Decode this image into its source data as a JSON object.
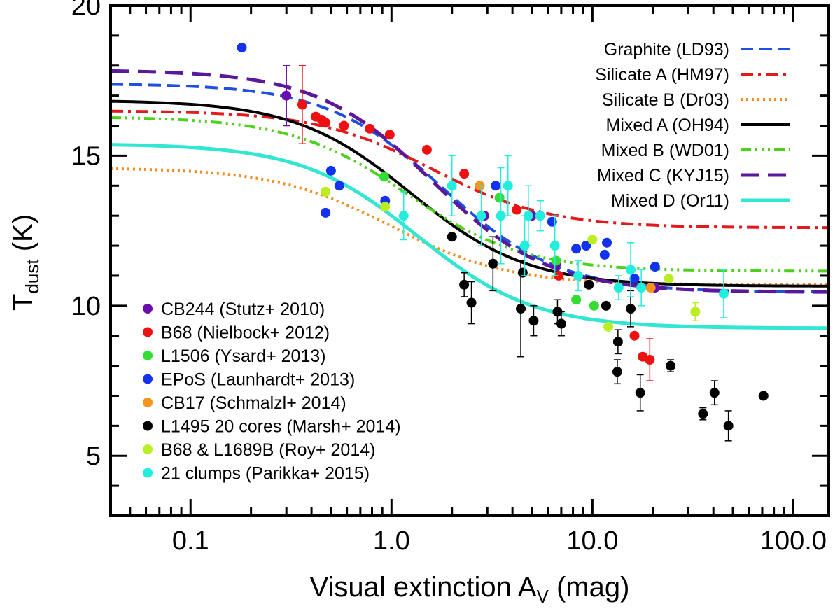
{
  "chart_data": {
    "type": "scatter",
    "xscale": "log",
    "xlim": [
      0.04,
      150
    ],
    "ylim": [
      3,
      20
    ],
    "xlabel": {
      "main": "Visual extinction A",
      "sub": "V",
      "unit": " (mag)"
    },
    "ylabel": {
      "main": "T",
      "sub": "dust",
      "unit": " (K)"
    },
    "xticks": [
      {
        "value": 0.1,
        "label": "0.1"
      },
      {
        "value": 1,
        "label": "1.0"
      },
      {
        "value": 10,
        "label": "10.0"
      },
      {
        "value": 100,
        "label": "100.0"
      }
    ],
    "yticks": [
      {
        "value": 5,
        "label": "5"
      },
      {
        "value": 10,
        "label": "10"
      },
      {
        "value": 15,
        "label": "15"
      },
      {
        "value": 20,
        "label": "20"
      }
    ],
    "models": [
      {
        "name": "Graphite (LD93)",
        "color": "#1f4fe0",
        "dash": "18,9",
        "width": 4,
        "T0": 17.4,
        "Tinf": 10.45,
        "A0": 1.8
      },
      {
        "name": "Silicate A (HM97)",
        "color": "#e31a1c",
        "dash": "18,7,4,7",
        "width": 4,
        "T0": 16.5,
        "Tinf": 12.6,
        "A0": 1.6
      },
      {
        "name": "Silicate B (Dr03)",
        "color": "#f28c1e",
        "dash": "3,5",
        "width": 4,
        "T0": 14.6,
        "Tinf": 10.7,
        "A0": 1.0
      },
      {
        "name": "Mixed A (OH94)",
        "color": "#000000",
        "dash": "",
        "width": 4,
        "T0": 16.85,
        "Tinf": 10.65,
        "A0": 1.25
      },
      {
        "name": "Mixed B (WD01)",
        "color": "#4fd01c",
        "dash": "15,6,3,6,3,6,3,6",
        "width": 4,
        "T0": 16.3,
        "Tinf": 11.15,
        "A0": 1.2
      },
      {
        "name": "Mixed C (KYJ15)",
        "color": "#5a189a",
        "dash": "26,13",
        "width": 5,
        "T0": 17.85,
        "Tinf": 10.45,
        "A0": 1.6
      },
      {
        "name": "Mixed D (Or11)",
        "color": "#33e6d2",
        "dash": "",
        "width": 5,
        "T0": 15.4,
        "Tinf": 9.25,
        "A0": 1.35
      }
    ],
    "series": [
      {
        "name": "CB244 (Stutz+ 2010)",
        "color": "#6a0dad",
        "points": [
          {
            "x": 0.3,
            "y": 17.0,
            "err": 1.0
          },
          {
            "x": 2.9,
            "y": 13.0
          },
          {
            "x": 5.0,
            "y": 13.0
          },
          {
            "x": 6.6,
            "y": 11.4
          },
          {
            "x": 20.5,
            "y": 10.6
          }
        ]
      },
      {
        "name": "B68 (Nielbock+ 2012)",
        "color": "#ee1111",
        "points": [
          {
            "x": 0.36,
            "y": 16.7,
            "err": 1.3
          },
          {
            "x": 0.42,
            "y": 16.3
          },
          {
            "x": 0.45,
            "y": 16.2
          },
          {
            "x": 0.47,
            "y": 16.1
          },
          {
            "x": 0.58,
            "y": 16.0
          },
          {
            "x": 0.78,
            "y": 15.9
          },
          {
            "x": 0.98,
            "y": 15.7
          },
          {
            "x": 1.5,
            "y": 15.2
          },
          {
            "x": 2.3,
            "y": 14.4
          },
          {
            "x": 4.2,
            "y": 13.2
          },
          {
            "x": 6.8,
            "y": 11.0
          },
          {
            "x": 16.2,
            "y": 9.0
          },
          {
            "x": 17.8,
            "y": 8.3
          },
          {
            "x": 19.3,
            "y": 8.2,
            "err": 0.7
          }
        ]
      },
      {
        "name": "L1506 (Ysard+ 2013)",
        "color": "#33dd33",
        "points": [
          {
            "x": 0.92,
            "y": 14.3
          },
          {
            "x": 3.45,
            "y": 13.6
          },
          {
            "x": 6.6,
            "y": 11.5
          },
          {
            "x": 8.3,
            "y": 10.2
          },
          {
            "x": 10.2,
            "y": 10.0
          }
        ]
      },
      {
        "name": "EPoS (Launhardt+ 2013)",
        "color": "#1133ee",
        "points": [
          {
            "x": 0.18,
            "y": 18.6
          },
          {
            "x": 0.47,
            "y": 13.1
          },
          {
            "x": 0.5,
            "y": 14.5
          },
          {
            "x": 0.55,
            "y": 14.0
          },
          {
            "x": 0.93,
            "y": 13.5
          },
          {
            "x": 3.3,
            "y": 14.0
          },
          {
            "x": 5.5,
            "y": 13.0
          },
          {
            "x": 6.3,
            "y": 12.8
          },
          {
            "x": 8.3,
            "y": 11.9
          },
          {
            "x": 9.3,
            "y": 12.0
          },
          {
            "x": 11.5,
            "y": 11.7
          },
          {
            "x": 11.8,
            "y": 12.1
          },
          {
            "x": 16.2,
            "y": 10.9
          },
          {
            "x": 20.5,
            "y": 11.3
          }
        ]
      },
      {
        "name": "CB17 (Schmalzl+ 2014)",
        "color": "#f7941d",
        "points": [
          {
            "x": 2.75,
            "y": 14.0
          },
          {
            "x": 19.5,
            "y": 10.6
          }
        ]
      },
      {
        "name": "L1495 20 cores (Marsh+ 2014)",
        "color": "#000000",
        "points": [
          {
            "x": 2.0,
            "y": 12.3
          },
          {
            "x": 2.3,
            "y": 10.7,
            "err": 0.4
          },
          {
            "x": 2.5,
            "y": 10.1,
            "err": 0.7
          },
          {
            "x": 3.2,
            "y": 11.4,
            "err": 0.9
          },
          {
            "x": 4.4,
            "y": 9.9,
            "err": 1.6
          },
          {
            "x": 4.5,
            "y": 11.1
          },
          {
            "x": 5.1,
            "y": 9.5,
            "err": 0.5
          },
          {
            "x": 6.7,
            "y": 9.8,
            "err": 0.4
          },
          {
            "x": 7.0,
            "y": 9.4,
            "err": 0.4
          },
          {
            "x": 9.6,
            "y": 10.7
          },
          {
            "x": 11.7,
            "y": 10.0
          },
          {
            "x": 13.4,
            "y": 8.8,
            "err": 0.4
          },
          {
            "x": 13.3,
            "y": 7.8,
            "err": 0.4
          },
          {
            "x": 15.5,
            "y": 9.9,
            "err": 0.6
          },
          {
            "x": 17.3,
            "y": 7.1,
            "err": 0.6
          },
          {
            "x": 24.5,
            "y": 8.0,
            "err": 0.2
          },
          {
            "x": 35.5,
            "y": 6.4,
            "err": 0.2
          },
          {
            "x": 40.5,
            "y": 7.1,
            "err": 0.4
          },
          {
            "x": 47.5,
            "y": 6.0,
            "err": 0.5
          },
          {
            "x": 71.0,
            "y": 7.0
          }
        ]
      },
      {
        "name": "B68 & L1689B (Roy+ 2014)",
        "color": "#bbee22",
        "points": [
          {
            "x": 0.47,
            "y": 13.8
          },
          {
            "x": 0.93,
            "y": 13.3
          },
          {
            "x": 10.0,
            "y": 12.2
          },
          {
            "x": 12.0,
            "y": 9.3
          },
          {
            "x": 24.0,
            "y": 10.9
          },
          {
            "x": 32.5,
            "y": 9.8,
            "err": 0.3
          }
        ]
      },
      {
        "name": "21 clumps (Parikka+ 2015)",
        "color": "#22eedd",
        "points": [
          {
            "x": 1.15,
            "y": 13.0,
            "err": 0.8
          },
          {
            "x": 2.0,
            "y": 14.0,
            "err": 1.0
          },
          {
            "x": 2.8,
            "y": 13.0,
            "err": 1.0
          },
          {
            "x": 3.5,
            "y": 13.0,
            "err": 1.6
          },
          {
            "x": 3.8,
            "y": 14.0,
            "err": 1.0
          },
          {
            "x": 4.6,
            "y": 12.0,
            "err": 1.0
          },
          {
            "x": 4.8,
            "y": 13.0,
            "err": 1.0
          },
          {
            "x": 5.5,
            "y": 13.0,
            "err": 0.5
          },
          {
            "x": 6.5,
            "y": 12.0,
            "err": 1.0
          },
          {
            "x": 8.5,
            "y": 11.0,
            "err": 0.5
          },
          {
            "x": 13.5,
            "y": 10.6,
            "err": 0.4
          },
          {
            "x": 15.5,
            "y": 11.2,
            "err": 0.9
          },
          {
            "x": 17.5,
            "y": 10.6,
            "err": 0.6
          },
          {
            "x": 45.0,
            "y": 10.4,
            "err": 0.8
          }
        ]
      }
    ]
  }
}
